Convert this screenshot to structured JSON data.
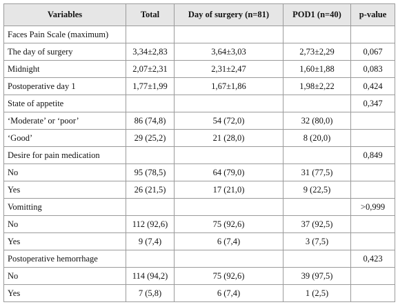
{
  "table": {
    "header": [
      "Variables",
      "Total",
      "Day of surgery (n=81)",
      "POD1 (n=40)",
      "p-value"
    ],
    "rows": [
      [
        "Faces Pain Scale (maximum)",
        null,
        null,
        null,
        null
      ],
      [
        "The day of surgery",
        "3,34±2,83",
        "3,64±3,03",
        "2,73±2,29",
        "0,067"
      ],
      [
        "Midnight",
        "2,07±2,31",
        "2,31±2,47",
        "1,60±1,88",
        "0,083"
      ],
      [
        "Postoperative day 1",
        "1,77±1,99",
        "1,67±1,86",
        "1,98±2,22",
        "0,424"
      ],
      [
        "State of appetite",
        null,
        null,
        null,
        "0,347"
      ],
      [
        "‘Moderate’ or ‘poor’",
        "86 (74,8)",
        "54 (72,0)",
        "32 (80,0)",
        null
      ],
      [
        "‘Good’",
        "29 (25,2)",
        "21 (28,0)",
        "8 (20,0)",
        null
      ],
      [
        "Desire for pain medication",
        null,
        null,
        null,
        "0,849"
      ],
      [
        "No",
        "95 (78,5)",
        "64 (79,0)",
        "31 (77,5)",
        null
      ],
      [
        "Yes",
        "26 (21,5)",
        "17 (21,0)",
        "9 (22,5)",
        null
      ],
      [
        "Vomitting",
        null,
        null,
        null,
        ">0,999"
      ],
      [
        "No",
        "112 (92,6)",
        "75 (92,6)",
        "37 (92,5)",
        null
      ],
      [
        "Yes",
        "9 (7,4)",
        "6 (7,4)",
        "3 (7,5)",
        null
      ],
      [
        "Postoperative hemorrhage",
        null,
        null,
        null,
        "0,423"
      ],
      [
        "No",
        "114 (94,2)",
        "75 (92,6)",
        "39 (97,5)",
        null
      ],
      [
        "Yes",
        "7 (5,8)",
        "6 (7,4)",
        "1 (2,5)",
        null
      ]
    ]
  }
}
